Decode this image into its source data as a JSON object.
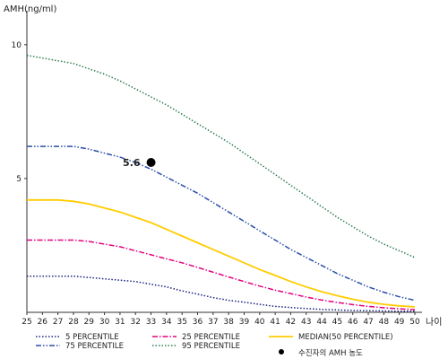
{
  "chart_data": {
    "type": "line",
    "ylabel": "AMH(ng/ml)",
    "xlabel": "나이",
    "x": [
      25,
      26,
      27,
      28,
      29,
      30,
      31,
      32,
      33,
      34,
      35,
      36,
      37,
      38,
      39,
      40,
      41,
      42,
      43,
      44,
      45,
      46,
      47,
      48,
      49,
      50
    ],
    "xlim": [
      25,
      50
    ],
    "ylim": [
      0,
      11
    ],
    "yticks": [
      5,
      10
    ],
    "grid": false,
    "legend_position": "bottom",
    "series": [
      {
        "name": "5 PERCENTILE",
        "color": "#1a237e",
        "dash": "dotted",
        "values": [
          1.35,
          1.35,
          1.35,
          1.35,
          1.3,
          1.25,
          1.2,
          1.15,
          1.05,
          0.95,
          0.8,
          0.68,
          0.55,
          0.45,
          0.38,
          0.3,
          0.22,
          0.18,
          0.14,
          0.11,
          0.09,
          0.07,
          0.06,
          0.05,
          0.04,
          0.04
        ]
      },
      {
        "name": "25 PERCENTILE",
        "color": "#e6007e",
        "dash": "dashdot",
        "values": [
          2.7,
          2.7,
          2.7,
          2.7,
          2.65,
          2.55,
          2.45,
          2.3,
          2.15,
          2.0,
          1.85,
          1.68,
          1.5,
          1.32,
          1.15,
          0.98,
          0.83,
          0.7,
          0.57,
          0.46,
          0.37,
          0.29,
          0.22,
          0.17,
          0.13,
          0.1
        ]
      },
      {
        "name": "MEDIAN(50 PERCENTILE)",
        "color": "#ffcc00",
        "dash": "solid",
        "values": [
          4.2,
          4.2,
          4.2,
          4.15,
          4.05,
          3.9,
          3.75,
          3.55,
          3.35,
          3.1,
          2.85,
          2.6,
          2.35,
          2.1,
          1.85,
          1.6,
          1.38,
          1.15,
          0.95,
          0.77,
          0.62,
          0.49,
          0.38,
          0.3,
          0.24,
          0.2
        ]
      },
      {
        "name": "75 PERCENTILE",
        "color": "#2b4fa8",
        "dash": "dashdotdot",
        "values": [
          6.2,
          6.2,
          6.2,
          6.2,
          6.1,
          5.95,
          5.8,
          5.6,
          5.35,
          5.05,
          4.75,
          4.45,
          4.1,
          3.75,
          3.4,
          3.05,
          2.7,
          2.35,
          2.05,
          1.75,
          1.45,
          1.2,
          0.95,
          0.75,
          0.58,
          0.45
        ]
      },
      {
        "name": "95 PERCENTILE",
        "color": "#2e7d4f",
        "dash": "dotted",
        "values": [
          9.6,
          9.5,
          9.4,
          9.3,
          9.1,
          8.9,
          8.65,
          8.35,
          8.05,
          7.75,
          7.4,
          7.05,
          6.7,
          6.35,
          5.95,
          5.55,
          5.15,
          4.75,
          4.35,
          3.95,
          3.55,
          3.2,
          2.85,
          2.55,
          2.3,
          2.05
        ]
      }
    ],
    "point": {
      "name": "수진자의 AMH 농도",
      "x": 33,
      "y": 5.6,
      "label": "5.6",
      "color": "#000000"
    }
  }
}
